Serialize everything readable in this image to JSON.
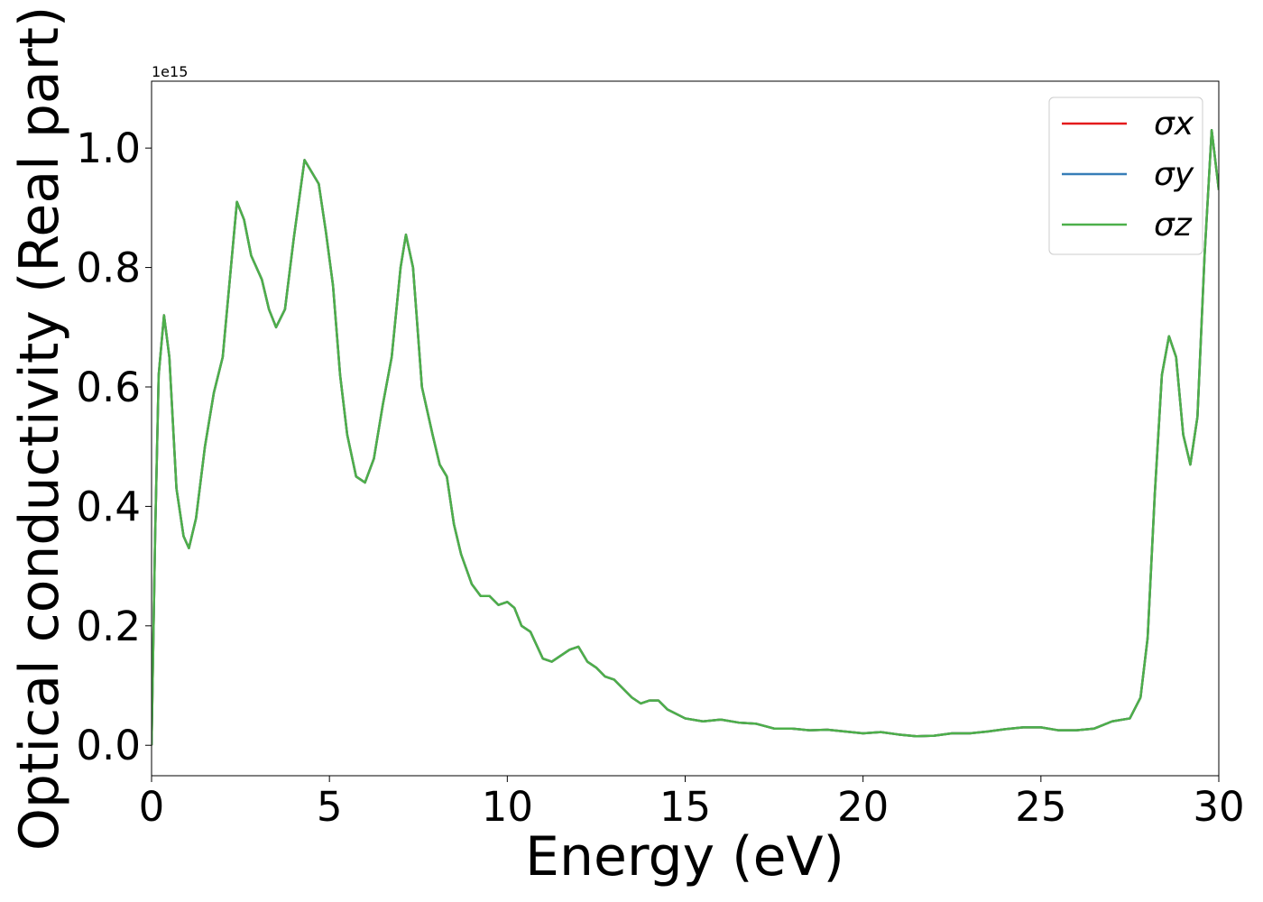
{
  "chart_data": {
    "type": "line",
    "xlabel": "Energy (eV)",
    "ylabel": "Optical conductivity (Real part)",
    "y_offset_label": "1e15",
    "xlim": [
      0,
      30
    ],
    "xticks": [
      0,
      5,
      10,
      15,
      20,
      25,
      30
    ],
    "ylim": [
      -0.051,
      1.112
    ],
    "yticks": [
      {
        "value": 0,
        "label": "0.0"
      },
      0.2,
      0.4,
      0.6,
      0.8,
      {
        "value": 1,
        "label": "1.0"
      }
    ],
    "legend": "upper right",
    "x": [
      0,
      0.1,
      0.2,
      0.35,
      0.5,
      0.7,
      0.9,
      1.05,
      1.25,
      1.5,
      1.75,
      2.0,
      2.2,
      2.4,
      2.6,
      2.8,
      3.1,
      3.3,
      3.5,
      3.75,
      4.0,
      4.3,
      4.5,
      4.7,
      4.9,
      5.1,
      5.3,
      5.5,
      5.75,
      6.0,
      6.25,
      6.5,
      6.75,
      7.0,
      7.15,
      7.35,
      7.6,
      7.9,
      8.1,
      8.3,
      8.5,
      8.7,
      9.0,
      9.25,
      9.5,
      9.75,
      10.0,
      10.2,
      10.4,
      10.65,
      11.0,
      11.25,
      11.5,
      11.75,
      12.0,
      12.25,
      12.5,
      12.75,
      13.0,
      13.5,
      13.75,
      14.0,
      14.25,
      14.5,
      15.0,
      15.5,
      16.0,
      16.5,
      17.0,
      17.5,
      18.0,
      18.5,
      19.0,
      19.5,
      20.0,
      20.5,
      21.0,
      21.5,
      22.0,
      22.5,
      23.0,
      23.5,
      24.0,
      24.5,
      25.0,
      25.5,
      26.0,
      26.5,
      27.0,
      27.5,
      27.8,
      28.0,
      28.2,
      28.4,
      28.6,
      28.8,
      29.0,
      29.2,
      29.4,
      29.6,
      29.8,
      30.0
    ],
    "series": [
      {
        "name": "σx",
        "color": "#e41a1c",
        "values": [
          0,
          0.35,
          0.62,
          0.72,
          0.65,
          0.43,
          0.35,
          0.33,
          0.38,
          0.5,
          0.59,
          0.65,
          0.78,
          0.91,
          0.88,
          0.82,
          0.78,
          0.73,
          0.7,
          0.73,
          0.85,
          0.98,
          0.96,
          0.94,
          0.86,
          0.77,
          0.62,
          0.52,
          0.45,
          0.44,
          0.48,
          0.57,
          0.65,
          0.8,
          0.855,
          0.8,
          0.6,
          0.52,
          0.47,
          0.45,
          0.37,
          0.32,
          0.27,
          0.25,
          0.25,
          0.235,
          0.24,
          0.23,
          0.2,
          0.19,
          0.145,
          0.14,
          0.15,
          0.16,
          0.165,
          0.14,
          0.13,
          0.115,
          0.11,
          0.08,
          0.07,
          0.075,
          0.075,
          0.06,
          0.045,
          0.04,
          0.043,
          0.038,
          0.036,
          0.028,
          0.028,
          0.025,
          0.026,
          0.023,
          0.02,
          0.022,
          0.018,
          0.015,
          0.016,
          0.02,
          0.02,
          0.023,
          0.027,
          0.03,
          0.03,
          0.025,
          0.025,
          0.028,
          0.04,
          0.045,
          0.08,
          0.18,
          0.42,
          0.62,
          0.685,
          0.65,
          0.52,
          0.47,
          0.55,
          0.82,
          1.03,
          0.93
        ]
      },
      {
        "name": "σy",
        "color": "#377eb8",
        "values": [
          0,
          0.35,
          0.62,
          0.72,
          0.65,
          0.43,
          0.35,
          0.33,
          0.38,
          0.5,
          0.59,
          0.65,
          0.78,
          0.91,
          0.88,
          0.82,
          0.78,
          0.73,
          0.7,
          0.73,
          0.85,
          0.98,
          0.96,
          0.94,
          0.86,
          0.77,
          0.62,
          0.52,
          0.45,
          0.44,
          0.48,
          0.57,
          0.65,
          0.8,
          0.855,
          0.8,
          0.6,
          0.52,
          0.47,
          0.45,
          0.37,
          0.32,
          0.27,
          0.25,
          0.25,
          0.235,
          0.24,
          0.23,
          0.2,
          0.19,
          0.145,
          0.14,
          0.15,
          0.16,
          0.165,
          0.14,
          0.13,
          0.115,
          0.11,
          0.08,
          0.07,
          0.075,
          0.075,
          0.06,
          0.045,
          0.04,
          0.043,
          0.038,
          0.036,
          0.028,
          0.028,
          0.025,
          0.026,
          0.023,
          0.02,
          0.022,
          0.018,
          0.015,
          0.016,
          0.02,
          0.02,
          0.023,
          0.027,
          0.03,
          0.03,
          0.025,
          0.025,
          0.028,
          0.04,
          0.045,
          0.08,
          0.18,
          0.42,
          0.62,
          0.685,
          0.65,
          0.52,
          0.47,
          0.55,
          0.82,
          1.03,
          0.93
        ]
      },
      {
        "name": "σz",
        "color": "#4daf4a",
        "values": [
          0,
          0.35,
          0.62,
          0.72,
          0.65,
          0.43,
          0.35,
          0.33,
          0.38,
          0.5,
          0.59,
          0.65,
          0.78,
          0.91,
          0.88,
          0.82,
          0.78,
          0.73,
          0.7,
          0.73,
          0.85,
          0.98,
          0.96,
          0.94,
          0.86,
          0.77,
          0.62,
          0.52,
          0.45,
          0.44,
          0.48,
          0.57,
          0.65,
          0.8,
          0.855,
          0.8,
          0.6,
          0.52,
          0.47,
          0.45,
          0.37,
          0.32,
          0.27,
          0.25,
          0.25,
          0.235,
          0.24,
          0.23,
          0.2,
          0.19,
          0.145,
          0.14,
          0.15,
          0.16,
          0.165,
          0.14,
          0.13,
          0.115,
          0.11,
          0.08,
          0.07,
          0.075,
          0.075,
          0.06,
          0.045,
          0.04,
          0.043,
          0.038,
          0.036,
          0.028,
          0.028,
          0.025,
          0.026,
          0.023,
          0.02,
          0.022,
          0.018,
          0.015,
          0.016,
          0.02,
          0.02,
          0.023,
          0.027,
          0.03,
          0.03,
          0.025,
          0.025,
          0.028,
          0.04,
          0.045,
          0.08,
          0.18,
          0.42,
          0.62,
          0.685,
          0.65,
          0.52,
          0.47,
          0.55,
          0.82,
          1.03,
          0.93
        ]
      }
    ]
  }
}
